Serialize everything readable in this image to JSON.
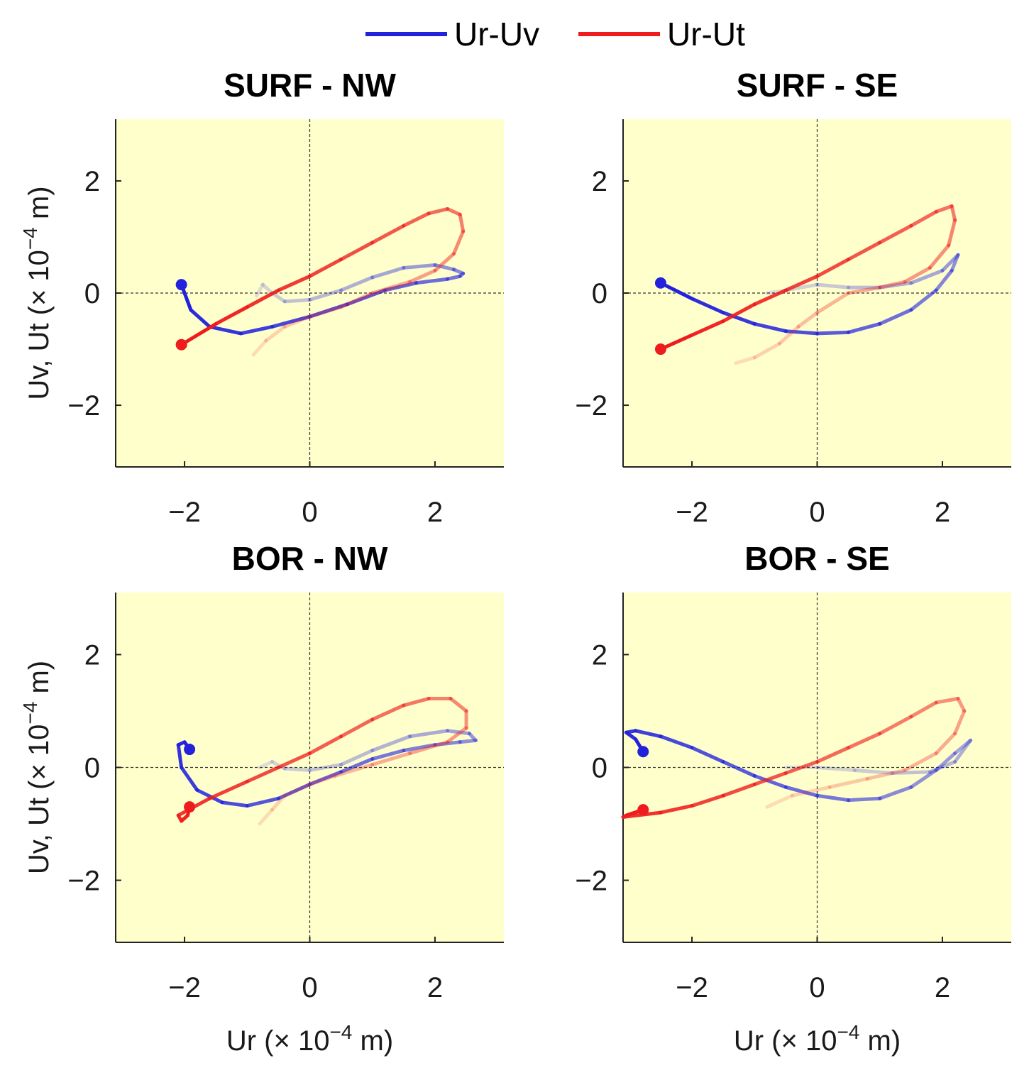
{
  "legend": {
    "placement": "top-center",
    "entries": [
      {
        "label": "Ur-Uv",
        "color": "#2222dd"
      },
      {
        "label": "Ur-Ut",
        "color": "#ee1c1c"
      }
    ]
  },
  "colors": {
    "background": "#ffffff",
    "plot_bg": "#ffffcc",
    "blue": "#2222dd",
    "red": "#ee1c1c"
  },
  "chart_data": [
    {
      "type": "line",
      "title": "SURF - NW",
      "ylabel_base": "Uv, Ut (× 10",
      "ylabel_exp": "−4",
      "ylabel_unit": " m)",
      "xlabel_base": "",
      "xlabel_exp": "",
      "xlabel_unit": "",
      "xlim": [
        -3.1,
        3.1
      ],
      "ylim": [
        -3.1,
        3.1
      ],
      "xticks": [
        -2,
        0,
        2
      ],
      "yticks": [
        -2,
        0,
        2
      ],
      "xtick_labels": [
        "−2",
        "0",
        "2"
      ],
      "ytick_labels": [
        "−2",
        "0",
        "2"
      ],
      "series": [
        {
          "name": "Ur-Uv",
          "color": "#2222dd",
          "points": [
            [
              -2.05,
              0.15
            ],
            [
              -1.9,
              -0.3
            ],
            [
              -1.6,
              -0.6
            ],
            [
              -1.1,
              -0.72
            ],
            [
              -0.6,
              -0.6
            ],
            [
              0,
              -0.42
            ],
            [
              0.6,
              -0.2
            ],
            [
              1.2,
              0.05
            ],
            [
              1.7,
              0.18
            ],
            [
              2.2,
              0.25
            ],
            [
              2.4,
              0.3
            ],
            [
              2.45,
              0.35
            ],
            [
              2.3,
              0.42
            ],
            [
              2.0,
              0.5
            ],
            [
              1.5,
              0.45
            ],
            [
              1.0,
              0.28
            ],
            [
              0.5,
              0.05
            ],
            [
              0,
              -0.12
            ],
            [
              -0.4,
              -0.15
            ],
            [
              -0.6,
              0.0
            ],
            [
              -0.75,
              0.15
            ],
            [
              -0.85,
              -0.05
            ]
          ],
          "start": [
            -2.05,
            0.15
          ]
        },
        {
          "name": "Ur-Ut",
          "color": "#ee1c1c",
          "points": [
            [
              -2.05,
              -0.92
            ],
            [
              -1.5,
              -0.55
            ],
            [
              -1.0,
              -0.25
            ],
            [
              -0.5,
              0.05
            ],
            [
              0,
              0.3
            ],
            [
              0.5,
              0.6
            ],
            [
              1.0,
              0.9
            ],
            [
              1.5,
              1.2
            ],
            [
              1.9,
              1.42
            ],
            [
              2.2,
              1.5
            ],
            [
              2.4,
              1.4
            ],
            [
              2.45,
              1.1
            ],
            [
              2.3,
              0.7
            ],
            [
              2.0,
              0.4
            ],
            [
              1.6,
              0.2
            ],
            [
              1.0,
              0.0
            ],
            [
              0.5,
              -0.25
            ],
            [
              0,
              -0.42
            ],
            [
              -0.4,
              -0.6
            ],
            [
              -0.7,
              -0.85
            ],
            [
              -0.9,
              -1.1
            ]
          ],
          "start": [
            -2.05,
            -0.92
          ]
        }
      ]
    },
    {
      "type": "line",
      "title": "SURF - SE",
      "ylabel_base": "",
      "ylabel_exp": "",
      "ylabel_unit": "",
      "xlabel_base": "",
      "xlabel_exp": "",
      "xlabel_unit": "",
      "xlim": [
        -3.1,
        3.1
      ],
      "ylim": [
        -3.1,
        3.1
      ],
      "xticks": [
        -2,
        0,
        2
      ],
      "yticks": [
        -2,
        0,
        2
      ],
      "xtick_labels": [
        "−2",
        "0",
        "2"
      ],
      "ytick_labels": [
        "−2",
        "0",
        "2"
      ],
      "series": [
        {
          "name": "Ur-Uv",
          "color": "#2222dd",
          "points": [
            [
              -2.5,
              0.18
            ],
            [
              -2.0,
              -0.1
            ],
            [
              -1.5,
              -0.35
            ],
            [
              -1.0,
              -0.55
            ],
            [
              -0.5,
              -0.68
            ],
            [
              0,
              -0.72
            ],
            [
              0.5,
              -0.7
            ],
            [
              1.0,
              -0.55
            ],
            [
              1.5,
              -0.3
            ],
            [
              1.9,
              0.05
            ],
            [
              2.15,
              0.4
            ],
            [
              2.25,
              0.68
            ],
            [
              2.0,
              0.4
            ],
            [
              1.5,
              0.18
            ],
            [
              1.0,
              0.1
            ],
            [
              0.5,
              0.1
            ],
            [
              0,
              0.15
            ],
            [
              -0.5,
              0.05
            ],
            [
              -0.8,
              0.0
            ]
          ],
          "start": [
            -2.5,
            0.18
          ]
        },
        {
          "name": "Ur-Ut",
          "color": "#ee1c1c",
          "points": [
            [
              -2.5,
              -1.0
            ],
            [
              -2.0,
              -0.75
            ],
            [
              -1.5,
              -0.5
            ],
            [
              -1.0,
              -0.2
            ],
            [
              -0.5,
              0.05
            ],
            [
              0,
              0.3
            ],
            [
              0.5,
              0.6
            ],
            [
              1.0,
              0.9
            ],
            [
              1.5,
              1.2
            ],
            [
              1.9,
              1.45
            ],
            [
              2.15,
              1.55
            ],
            [
              2.2,
              1.3
            ],
            [
              2.1,
              0.85
            ],
            [
              1.8,
              0.45
            ],
            [
              1.4,
              0.2
            ],
            [
              1.0,
              0.1
            ],
            [
              0.5,
              0.0
            ],
            [
              0,
              -0.35
            ],
            [
              -0.3,
              -0.6
            ],
            [
              -0.6,
              -0.9
            ],
            [
              -1.0,
              -1.15
            ],
            [
              -1.3,
              -1.25
            ]
          ],
          "start": [
            -2.5,
            -1.0
          ]
        }
      ]
    },
    {
      "type": "line",
      "title": "BOR - NW",
      "ylabel_base": "Uv, Ut (× 10",
      "ylabel_exp": "−4",
      "ylabel_unit": " m)",
      "xlabel_base": "Ur (× 10",
      "xlabel_exp": "−4",
      "xlabel_unit": " m)",
      "xlim": [
        -3.1,
        3.1
      ],
      "ylim": [
        -3.1,
        3.1
      ],
      "xticks": [
        -2,
        0,
        2
      ],
      "yticks": [
        -2,
        0,
        2
      ],
      "xtick_labels": [
        "−2",
        "0",
        "2"
      ],
      "ytick_labels": [
        "−2",
        "0",
        "2"
      ],
      "series": [
        {
          "name": "Ur-Uv",
          "color": "#2222dd",
          "points": [
            [
              -1.92,
              0.32
            ],
            [
              -2.0,
              0.45
            ],
            [
              -2.1,
              0.4
            ],
            [
              -2.05,
              0.0
            ],
            [
              -1.8,
              -0.4
            ],
            [
              -1.4,
              -0.62
            ],
            [
              -1.0,
              -0.68
            ],
            [
              -0.5,
              -0.55
            ],
            [
              0,
              -0.3
            ],
            [
              0.5,
              -0.08
            ],
            [
              1.0,
              0.15
            ],
            [
              1.5,
              0.3
            ],
            [
              2.0,
              0.4
            ],
            [
              2.4,
              0.45
            ],
            [
              2.65,
              0.48
            ],
            [
              2.55,
              0.6
            ],
            [
              2.2,
              0.65
            ],
            [
              1.6,
              0.55
            ],
            [
              1.0,
              0.3
            ],
            [
              0.5,
              0.05
            ],
            [
              0,
              -0.05
            ],
            [
              -0.4,
              -0.02
            ],
            [
              -0.6,
              0.1
            ],
            [
              -0.8,
              0.0
            ]
          ],
          "start": [
            -1.92,
            0.32
          ]
        },
        {
          "name": "Ur-Ut",
          "color": "#ee1c1c",
          "points": [
            [
              -1.92,
              -0.7
            ],
            [
              -1.95,
              -0.85
            ],
            [
              -2.05,
              -0.95
            ],
            [
              -2.1,
              -0.85
            ],
            [
              -1.6,
              -0.55
            ],
            [
              -1.0,
              -0.25
            ],
            [
              -0.5,
              0.0
            ],
            [
              0,
              0.25
            ],
            [
              0.5,
              0.55
            ],
            [
              1.0,
              0.85
            ],
            [
              1.5,
              1.1
            ],
            [
              1.9,
              1.22
            ],
            [
              2.25,
              1.22
            ],
            [
              2.5,
              1.0
            ],
            [
              2.5,
              0.7
            ],
            [
              2.2,
              0.45
            ],
            [
              1.6,
              0.25
            ],
            [
              1.0,
              0.05
            ],
            [
              0.4,
              -0.15
            ],
            [
              0,
              -0.3
            ],
            [
              -0.4,
              -0.5
            ],
            [
              -0.6,
              -0.75
            ],
            [
              -0.8,
              -1.0
            ]
          ],
          "start": [
            -1.92,
            -0.7
          ]
        }
      ]
    },
    {
      "type": "line",
      "title": "BOR - SE",
      "ylabel_base": "",
      "ylabel_exp": "",
      "ylabel_unit": "",
      "xlabel_base": "Ur (× 10",
      "xlabel_exp": "−4",
      "xlabel_unit": " m)",
      "xlim": [
        -3.1,
        3.1
      ],
      "ylim": [
        -3.1,
        3.1
      ],
      "xticks": [
        -2,
        0,
        2
      ],
      "yticks": [
        -2,
        0,
        2
      ],
      "xtick_labels": [
        "−2",
        "0",
        "2"
      ],
      "ytick_labels": [
        "−2",
        "0",
        "2"
      ],
      "series": [
        {
          "name": "Ur-Uv",
          "color": "#2222dd",
          "points": [
            [
              -2.78,
              0.28
            ],
            [
              -2.9,
              0.5
            ],
            [
              -3.05,
              0.62
            ],
            [
              -2.9,
              0.65
            ],
            [
              -2.5,
              0.55
            ],
            [
              -2.0,
              0.35
            ],
            [
              -1.5,
              0.1
            ],
            [
              -1.0,
              -0.15
            ],
            [
              -0.5,
              -0.35
            ],
            [
              0,
              -0.5
            ],
            [
              0.5,
              -0.58
            ],
            [
              1.0,
              -0.55
            ],
            [
              1.5,
              -0.35
            ],
            [
              1.9,
              -0.05
            ],
            [
              2.2,
              0.25
            ],
            [
              2.45,
              0.48
            ],
            [
              2.2,
              0.1
            ],
            [
              1.8,
              -0.08
            ],
            [
              1.2,
              -0.1
            ],
            [
              0.6,
              -0.05
            ],
            [
              0,
              0.0
            ],
            [
              -0.5,
              0.0
            ]
          ],
          "start": [
            -2.78,
            0.28
          ]
        },
        {
          "name": "Ur-Ut",
          "color": "#ee1c1c",
          "points": [
            [
              -2.78,
              -0.75
            ],
            [
              -3.05,
              -0.85
            ],
            [
              -3.1,
              -0.88
            ],
            [
              -2.5,
              -0.8
            ],
            [
              -2.0,
              -0.68
            ],
            [
              -1.5,
              -0.5
            ],
            [
              -1.0,
              -0.3
            ],
            [
              -0.5,
              -0.1
            ],
            [
              0,
              0.1
            ],
            [
              0.5,
              0.35
            ],
            [
              1.0,
              0.6
            ],
            [
              1.5,
              0.9
            ],
            [
              1.9,
              1.15
            ],
            [
              2.25,
              1.22
            ],
            [
              2.35,
              1.0
            ],
            [
              2.2,
              0.6
            ],
            [
              1.9,
              0.25
            ],
            [
              1.4,
              -0.05
            ],
            [
              0.8,
              -0.2
            ],
            [
              0.2,
              -0.35
            ],
            [
              -0.4,
              -0.5
            ],
            [
              -0.8,
              -0.7
            ]
          ],
          "start": [
            -2.78,
            -0.75
          ]
        }
      ]
    }
  ]
}
